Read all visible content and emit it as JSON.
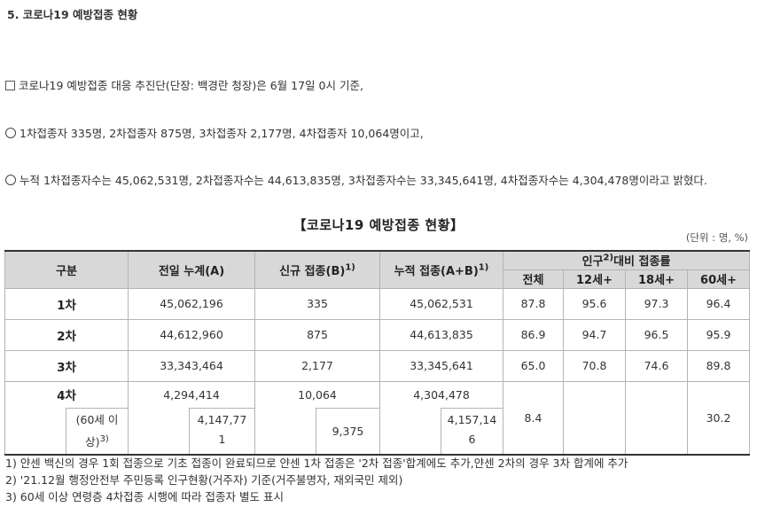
{
  "section_title": "5. 코로나19 예방접종 현황",
  "paragraphs": [
    {
      "bullet": "square",
      "text": "코로나19 예방접종 대응 추진단(단장: 백경란 청장)은 6월 17일 0시 기준,"
    },
    {
      "bullet": "circle",
      "text": "1차접종자 335명, 2차접종자 875명, 3차접종자 2,177명, 4차접종자 10,064명이고,"
    },
    {
      "bullet": "circle",
      "text": "누적 1차접종자수는 45,062,531명, 2차접종자수는 44,613,835명, 3차접종자수는 33,345,641명, 4차접종자수는 4,304,478명이라고 밝혔다."
    }
  ],
  "table_title": "【코로나19 예방접종 현황】",
  "unit": "(단위 : 명, %)",
  "headers": {
    "gubun": "구분",
    "prev": "전일 누계(A)",
    "new": "신규 접종(B)",
    "new_sup": "1)",
    "cum": "누적 접종(A+B)",
    "cum_sup": "1)",
    "pop_pre": "인구",
    "pop_sup": "2)",
    "pop_post": "대비 접종률",
    "sub": [
      "전체",
      "12세+",
      "18세+",
      "60세+"
    ]
  },
  "rows": [
    {
      "label": "1차",
      "prev": "45,062,196",
      "new": "335",
      "cum": "45,062,531",
      "r": [
        "87.8",
        "95.6",
        "97.3",
        "96.4"
      ]
    },
    {
      "label": "2차",
      "prev": "44,612,960",
      "new": "875",
      "cum": "44,613,835",
      "r": [
        "86.9",
        "94.7",
        "96.5",
        "95.9"
      ]
    },
    {
      "label": "3차",
      "prev": "33,343,464",
      "new": "2,177",
      "cum": "33,345,641",
      "r": [
        "65.0",
        "70.8",
        "74.6",
        "89.8"
      ]
    }
  ],
  "row4": {
    "label": "4차",
    "prev": "4,294,414",
    "new": "10,064",
    "cum": "4,304,478",
    "total": "8.4",
    "r60": "30.2",
    "sub_label_a": "(60세 이",
    "sub_label_b": "상)",
    "sub_sup": "3)",
    "sub_prev_a": "4,147,77",
    "sub_prev_b": "1",
    "sub_new": "9,375",
    "sub_cum_a": "4,157,14",
    "sub_cum_b": "6"
  },
  "notes": [
    "1) 얀센 백신의 경우 1회 접종으로 기초 접종이 완료되므로 얀센 1차 접종은 '2차 접종'합계에도 추가,얀센 2차의 경우 3차 합계에 추가",
    "2) '21.12월 행정안전부 주민등록 인구현황(거주자) 기준(거주불명자, 재외국민 제외)",
    "3) 60세 이상 연령층 4차접종 시행에 따라 접종자 별도 표시"
  ]
}
